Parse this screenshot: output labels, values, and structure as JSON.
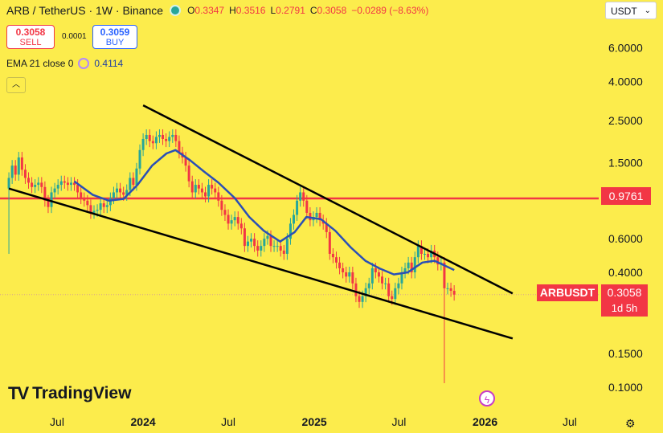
{
  "header": {
    "pair": "ARB / TetherUS",
    "sep1": "·",
    "interval": "1W",
    "sep2": "·",
    "exchange": "Binance",
    "open_label": "O",
    "open": "0.3347",
    "high_label": "H",
    "high": "0.3516",
    "low_label": "L",
    "low": "0.2791",
    "close_label": "C",
    "close": "0.3058",
    "change": "−0.0289 (−8.63%)"
  },
  "trade": {
    "sell_price": "0.3058",
    "sell_label": "SELL",
    "spread": "0.0001",
    "buy_price": "0.3059",
    "buy_label": "BUY"
  },
  "indicator": {
    "label": "EMA 21 close 0",
    "value": "0.4114"
  },
  "collapse_icon": "chevron-up-icon",
  "currency_select": {
    "value": "USDT",
    "icon": "chevron-down-icon"
  },
  "horizontal_line": {
    "value": 0.9761,
    "label": "0.9761",
    "color": "#f23645"
  },
  "symbol_tag": {
    "symbol": "ARBUSDT",
    "price": "0.3058",
    "countdown": "1d 5h"
  },
  "branding": {
    "logo_mark": "TV",
    "logo_text": "TradingView"
  },
  "icons": {
    "settings": "gear-icon",
    "flash": "flash-icon"
  },
  "colors": {
    "background": "#fcec4c",
    "up": "#26a69a",
    "down": "#f23645",
    "ema": "#2a4fb6",
    "trendline": "#000000"
  },
  "chart_data": {
    "type": "candlestick",
    "y_scale": "log",
    "ylim": [
      0.08,
      8.0
    ],
    "y_ticks": [
      {
        "value": 6.0,
        "label": "6.0000"
      },
      {
        "value": 4.0,
        "label": "4.0000"
      },
      {
        "value": 2.5,
        "label": "2.5000"
      },
      {
        "value": 1.5,
        "label": "1.5000"
      },
      {
        "value": 0.6,
        "label": "0.6000"
      },
      {
        "value": 0.4,
        "label": "0.4000"
      },
      {
        "value": 0.15,
        "label": "0.1500"
      },
      {
        "value": 0.1,
        "label": "0.1000"
      }
    ],
    "x_ticks": [
      {
        "date": "2023-07-01",
        "label": "Jul"
      },
      {
        "date": "2024-01-01",
        "label": "2024"
      },
      {
        "date": "2024-07-01",
        "label": "Jul"
      },
      {
        "date": "2025-01-01",
        "label": "2025"
      },
      {
        "date": "2025-07-01",
        "label": "Jul"
      },
      {
        "date": "2026-01-01",
        "label": "2026"
      },
      {
        "date": "2026-07-01",
        "label": "Jul"
      }
    ],
    "xlim": [
      "2023-03-01",
      "2026-09-01"
    ],
    "weekly_closes": [
      {
        "date": "2023-03-20",
        "close": 1.25
      },
      {
        "date": "2023-03-27",
        "close": 1.45
      },
      {
        "date": "2023-04-03",
        "close": 1.3
      },
      {
        "date": "2023-04-10",
        "close": 1.6
      },
      {
        "date": "2023-04-17",
        "close": 1.38
      },
      {
        "date": "2023-04-24",
        "close": 1.25
      },
      {
        "date": "2023-05-01",
        "close": 1.18
      },
      {
        "date": "2023-05-08",
        "close": 1.12
      },
      {
        "date": "2023-05-15",
        "close": 1.15
      },
      {
        "date": "2023-05-22",
        "close": 1.18
      },
      {
        "date": "2023-05-29",
        "close": 1.12
      },
      {
        "date": "2023-06-05",
        "close": 0.95
      },
      {
        "date": "2023-06-12",
        "close": 0.88
      },
      {
        "date": "2023-06-19",
        "close": 1.05
      },
      {
        "date": "2023-06-26",
        "close": 1.1
      },
      {
        "date": "2023-07-03",
        "close": 1.15
      },
      {
        "date": "2023-07-10",
        "close": 1.2
      },
      {
        "date": "2023-07-17",
        "close": 1.18
      },
      {
        "date": "2023-07-24",
        "close": 1.15
      },
      {
        "date": "2023-07-31",
        "close": 1.18
      },
      {
        "date": "2023-08-07",
        "close": 1.15
      },
      {
        "date": "2023-08-14",
        "close": 1.05
      },
      {
        "date": "2023-08-21",
        "close": 0.98
      },
      {
        "date": "2023-08-28",
        "close": 0.95
      },
      {
        "date": "2023-09-04",
        "close": 0.9
      },
      {
        "date": "2023-09-11",
        "close": 0.82
      },
      {
        "date": "2023-09-18",
        "close": 0.84
      },
      {
        "date": "2023-09-25",
        "close": 0.85
      },
      {
        "date": "2023-10-02",
        "close": 0.92
      },
      {
        "date": "2023-10-09",
        "close": 0.88
      },
      {
        "date": "2023-10-16",
        "close": 0.9
      },
      {
        "date": "2023-10-23",
        "close": 0.98
      },
      {
        "date": "2023-10-30",
        "close": 1.05
      },
      {
        "date": "2023-11-06",
        "close": 1.1
      },
      {
        "date": "2023-11-13",
        "close": 1.05
      },
      {
        "date": "2023-11-20",
        "close": 1.02
      },
      {
        "date": "2023-11-27",
        "close": 1.08
      },
      {
        "date": "2023-12-04",
        "close": 1.25
      },
      {
        "date": "2023-12-11",
        "close": 1.15
      },
      {
        "date": "2023-12-18",
        "close": 1.4
      },
      {
        "date": "2023-12-25",
        "close": 1.75
      },
      {
        "date": "2024-01-01",
        "close": 2.0
      },
      {
        "date": "2024-01-08",
        "close": 2.1
      },
      {
        "date": "2024-01-15",
        "close": 1.95
      },
      {
        "date": "2024-01-22",
        "close": 1.9
      },
      {
        "date": "2024-01-29",
        "close": 2.05
      },
      {
        "date": "2024-02-05",
        "close": 2.1
      },
      {
        "date": "2024-02-12",
        "close": 2.0
      },
      {
        "date": "2024-02-19",
        "close": 1.95
      },
      {
        "date": "2024-02-26",
        "close": 2.05
      },
      {
        "date": "2024-03-04",
        "close": 2.1
      },
      {
        "date": "2024-03-11",
        "close": 1.95
      },
      {
        "date": "2024-03-18",
        "close": 1.7
      },
      {
        "date": "2024-03-25",
        "close": 1.6
      },
      {
        "date": "2024-04-01",
        "close": 1.45
      },
      {
        "date": "2024-04-08",
        "close": 1.2
      },
      {
        "date": "2024-04-15",
        "close": 1.05
      },
      {
        "date": "2024-04-22",
        "close": 1.15
      },
      {
        "date": "2024-04-29",
        "close": 1.1
      },
      {
        "date": "2024-05-06",
        "close": 1.05
      },
      {
        "date": "2024-05-13",
        "close": 1.0
      },
      {
        "date": "2024-05-20",
        "close": 1.15
      },
      {
        "date": "2024-05-27",
        "close": 1.1
      },
      {
        "date": "2024-06-03",
        "close": 1.05
      },
      {
        "date": "2024-06-10",
        "close": 0.95
      },
      {
        "date": "2024-06-17",
        "close": 0.85
      },
      {
        "date": "2024-06-24",
        "close": 0.8
      },
      {
        "date": "2024-07-01",
        "close": 0.72
      },
      {
        "date": "2024-07-08",
        "close": 0.75
      },
      {
        "date": "2024-07-15",
        "close": 0.78
      },
      {
        "date": "2024-07-22",
        "close": 0.72
      },
      {
        "date": "2024-07-29",
        "close": 0.68
      },
      {
        "date": "2024-08-05",
        "close": 0.55
      },
      {
        "date": "2024-08-12",
        "close": 0.58
      },
      {
        "date": "2024-08-19",
        "close": 0.6
      },
      {
        "date": "2024-08-26",
        "close": 0.55
      },
      {
        "date": "2024-09-02",
        "close": 0.52
      },
      {
        "date": "2024-09-09",
        "close": 0.55
      },
      {
        "date": "2024-09-16",
        "close": 0.6
      },
      {
        "date": "2024-09-23",
        "close": 0.62
      },
      {
        "date": "2024-09-30",
        "close": 0.55
      },
      {
        "date": "2024-10-07",
        "close": 0.55
      },
      {
        "date": "2024-10-14",
        "close": 0.55
      },
      {
        "date": "2024-10-21",
        "close": 0.52
      },
      {
        "date": "2024-10-28",
        "close": 0.5
      },
      {
        "date": "2024-11-04",
        "close": 0.6
      },
      {
        "date": "2024-11-11",
        "close": 0.72
      },
      {
        "date": "2024-11-18",
        "close": 0.8
      },
      {
        "date": "2024-11-25",
        "close": 0.95
      },
      {
        "date": "2024-12-02",
        "close": 1.05
      },
      {
        "date": "2024-12-09",
        "close": 0.95
      },
      {
        "date": "2024-12-16",
        "close": 0.82
      },
      {
        "date": "2024-12-23",
        "close": 0.75
      },
      {
        "date": "2024-12-30",
        "close": 0.78
      },
      {
        "date": "2025-01-06",
        "close": 0.82
      },
      {
        "date": "2025-01-13",
        "close": 0.75
      },
      {
        "date": "2025-01-20",
        "close": 0.72
      },
      {
        "date": "2025-01-27",
        "close": 0.65
      },
      {
        "date": "2025-02-03",
        "close": 0.5
      },
      {
        "date": "2025-02-10",
        "close": 0.48
      },
      {
        "date": "2025-02-17",
        "close": 0.45
      },
      {
        "date": "2025-02-24",
        "close": 0.42
      },
      {
        "date": "2025-03-03",
        "close": 0.4
      },
      {
        "date": "2025-03-10",
        "close": 0.38
      },
      {
        "date": "2025-03-17",
        "close": 0.4
      },
      {
        "date": "2025-03-24",
        "close": 0.35
      },
      {
        "date": "2025-03-31",
        "close": 0.3
      },
      {
        "date": "2025-04-07",
        "close": 0.28
      },
      {
        "date": "2025-04-14",
        "close": 0.3
      },
      {
        "date": "2025-04-21",
        "close": 0.33
      },
      {
        "date": "2025-04-28",
        "close": 0.35
      },
      {
        "date": "2025-05-05",
        "close": 0.42
      },
      {
        "date": "2025-05-12",
        "close": 0.4
      },
      {
        "date": "2025-05-19",
        "close": 0.38
      },
      {
        "date": "2025-05-26",
        "close": 0.35
      },
      {
        "date": "2025-06-02",
        "close": 0.35
      },
      {
        "date": "2025-06-09",
        "close": 0.3
      },
      {
        "date": "2025-06-16",
        "close": 0.29
      },
      {
        "date": "2025-06-23",
        "close": 0.33
      },
      {
        "date": "2025-06-30",
        "close": 0.35
      },
      {
        "date": "2025-07-07",
        "close": 0.4
      },
      {
        "date": "2025-07-14",
        "close": 0.42
      },
      {
        "date": "2025-07-21",
        "close": 0.45
      },
      {
        "date": "2025-07-28",
        "close": 0.4
      },
      {
        "date": "2025-08-04",
        "close": 0.48
      },
      {
        "date": "2025-08-11",
        "close": 0.55
      },
      {
        "date": "2025-08-18",
        "close": 0.5
      },
      {
        "date": "2025-08-25",
        "close": 0.5
      },
      {
        "date": "2025-09-01",
        "close": 0.48
      },
      {
        "date": "2025-09-08",
        "close": 0.52
      },
      {
        "date": "2025-09-15",
        "close": 0.48
      },
      {
        "date": "2025-09-22",
        "close": 0.44
      },
      {
        "date": "2025-09-29",
        "close": 0.45
      },
      {
        "date": "2025-10-06",
        "close": 0.33
      },
      {
        "date": "2025-10-13",
        "close": 0.33
      },
      {
        "date": "2025-10-20",
        "close": 0.32
      },
      {
        "date": "2025-10-27",
        "close": 0.3058
      }
    ],
    "special_wicks": [
      {
        "date": "2023-03-20",
        "low": 0.5
      },
      {
        "date": "2025-10-06",
        "low": 0.105
      }
    ],
    "ema21": [
      {
        "date": "2023-08-07",
        "value": 1.2
      },
      {
        "date": "2023-09-15",
        "value": 1.02
      },
      {
        "date": "2023-10-20",
        "value": 0.95
      },
      {
        "date": "2023-11-20",
        "value": 0.97
      },
      {
        "date": "2023-12-20",
        "value": 1.15
      },
      {
        "date": "2024-01-20",
        "value": 1.45
      },
      {
        "date": "2024-02-20",
        "value": 1.68
      },
      {
        "date": "2024-03-10",
        "value": 1.75
      },
      {
        "date": "2024-04-10",
        "value": 1.55
      },
      {
        "date": "2024-05-10",
        "value": 1.35
      },
      {
        "date": "2024-06-10",
        "value": 1.18
      },
      {
        "date": "2024-07-15",
        "value": 0.98
      },
      {
        "date": "2024-08-15",
        "value": 0.78
      },
      {
        "date": "2024-09-15",
        "value": 0.66
      },
      {
        "date": "2024-10-20",
        "value": 0.58
      },
      {
        "date": "2024-11-20",
        "value": 0.65
      },
      {
        "date": "2024-12-15",
        "value": 0.78
      },
      {
        "date": "2025-01-15",
        "value": 0.76
      },
      {
        "date": "2025-02-15",
        "value": 0.66
      },
      {
        "date": "2025-03-20",
        "value": 0.54
      },
      {
        "date": "2025-04-20",
        "value": 0.46
      },
      {
        "date": "2025-05-20",
        "value": 0.42
      },
      {
        "date": "2025-06-20",
        "value": 0.39
      },
      {
        "date": "2025-07-20",
        "value": 0.4
      },
      {
        "date": "2025-08-20",
        "value": 0.45
      },
      {
        "date": "2025-09-15",
        "value": 0.46
      },
      {
        "date": "2025-10-27",
        "value": 0.4114
      }
    ],
    "trendlines": [
      {
        "from": {
          "date": "2024-01-01",
          "value": 3.0
        },
        "to": {
          "date": "2026-03-01",
          "value": 0.31
        }
      },
      {
        "from": {
          "date": "2023-03-20",
          "value": 1.1
        },
        "to": {
          "date": "2026-03-01",
          "value": 0.18
        }
      }
    ]
  }
}
